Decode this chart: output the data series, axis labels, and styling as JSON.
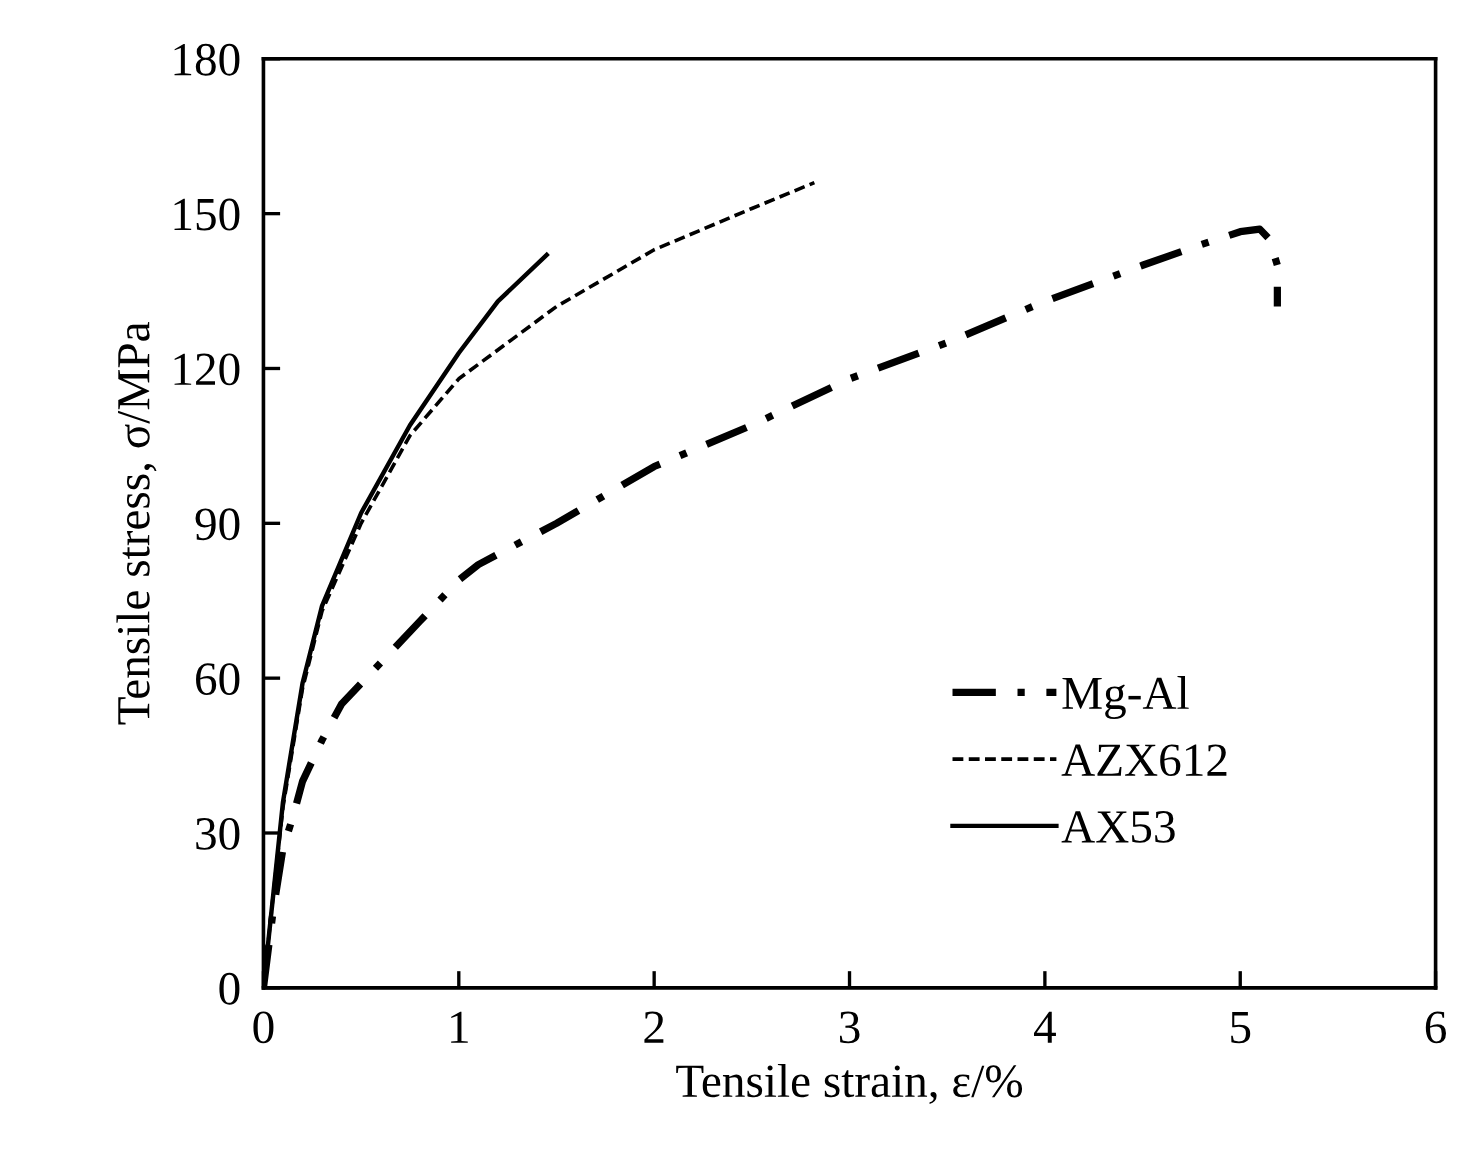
{
  "chart_data": {
    "type": "line",
    "xlabel": "Tensile strain, ε/%",
    "ylabel": "Tensile stress, σ/MPa",
    "xlim": [
      0,
      6
    ],
    "ylim": [
      0,
      180
    ],
    "xticks": [
      0,
      1,
      2,
      3,
      4,
      5,
      6
    ],
    "yticks": [
      0,
      30,
      60,
      90,
      120,
      150,
      180
    ],
    "grid": false,
    "legend": "bottom right",
    "marker": "none",
    "series": [
      {
        "name": "Mg-Al",
        "color": "#000000",
        "line_style": "dashdot",
        "x": [
          0,
          0.05,
          0.1,
          0.15,
          0.2,
          0.3,
          0.4,
          0.6,
          0.8,
          1.0,
          1.1,
          1.5,
          2.0,
          2.5,
          3.0,
          3.5,
          4.0,
          4.5,
          4.8,
          5.0,
          5.1,
          5.15,
          5.19,
          5.19
        ],
        "values": [
          0,
          15,
          27,
          33,
          40,
          48,
          55,
          63,
          71,
          79,
          82,
          90,
          101,
          109,
          118,
          125,
          133,
          140,
          144,
          146.5,
          147,
          145,
          140,
          132
        ]
      },
      {
        "name": "AZX612",
        "color": "#000000",
        "line_style": "dashed",
        "x": [
          0,
          0.05,
          0.1,
          0.2,
          0.3,
          0.5,
          0.75,
          1.0,
          1.5,
          2.0,
          2.5,
          2.82
        ],
        "values": [
          0,
          18,
          35,
          58,
          73,
          90,
          107,
          118,
          132,
          143,
          151,
          156
        ]
      },
      {
        "name": "AX53",
        "color": "#000000",
        "line_style": "solid",
        "x": [
          0,
          0.05,
          0.1,
          0.2,
          0.3,
          0.5,
          0.75,
          1.0,
          1.2,
          1.45
        ],
        "values": [
          0,
          18,
          36,
          59,
          74,
          92,
          109,
          123,
          133,
          142
        ]
      }
    ]
  }
}
